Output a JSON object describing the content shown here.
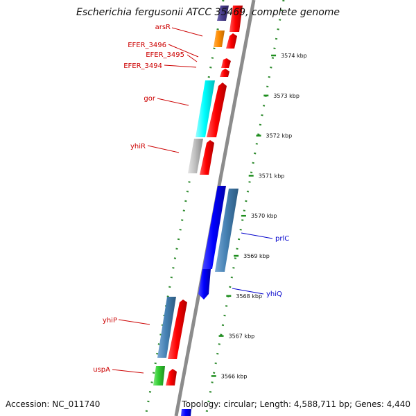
{
  "title": "Escherichia fergusonii ATCC 35469, complete genome",
  "footer": {
    "accession": "Accession: NC_011740",
    "topology": "Topology: circular; Length: 4,588,711 bp; Genes: 4,440"
  },
  "colors": {
    "backbone": "#8c8c8c",
    "tick": "#1e8f1e",
    "minor_tick": "#2e8b2e",
    "label_red": "#cc0000",
    "label_blue": "#0000cc",
    "cds_red": "#ff0000",
    "cds_blue": "#0000ff",
    "cds_steel": "#4682b4",
    "cds_cyan": "#00ffff",
    "cds_silver": "#c0c0c0",
    "cds_orange": "#ff8c00",
    "cds_purple": "#483d8b",
    "cds_green": "#32cd32"
  },
  "ticks": [
    {
      "label": "3574 kbp",
      "kbp": 3574
    },
    {
      "label": "3573 kbp",
      "kbp": 3573
    },
    {
      "label": "3572 kbp",
      "kbp": 3572
    },
    {
      "label": "3571 kbp",
      "kbp": 3571
    },
    {
      "label": "3570 kbp",
      "kbp": 3570
    },
    {
      "label": "3569 kbp",
      "kbp": 3569
    },
    {
      "label": "3568 kbp",
      "kbp": 3568
    },
    {
      "label": "3567 kbp",
      "kbp": 3567
    },
    {
      "label": "3566 kbp",
      "kbp": 3566
    }
  ],
  "gene_labels": [
    {
      "text": "arsR",
      "color": "label_red"
    },
    {
      "text": "EFER_3496",
      "color": "label_red"
    },
    {
      "text": "EFER_3495",
      "color": "label_red"
    },
    {
      "text": "EFER_3494",
      "color": "label_red"
    },
    {
      "text": "gor",
      "color": "label_red"
    },
    {
      "text": "yhiR",
      "color": "label_red"
    },
    {
      "text": "prlC",
      "color": "label_blue"
    },
    {
      "text": "yhiQ",
      "color": "label_blue"
    },
    {
      "text": "yhiP",
      "color": "label_red"
    },
    {
      "text": "uspA",
      "color": "label_red"
    }
  ]
}
